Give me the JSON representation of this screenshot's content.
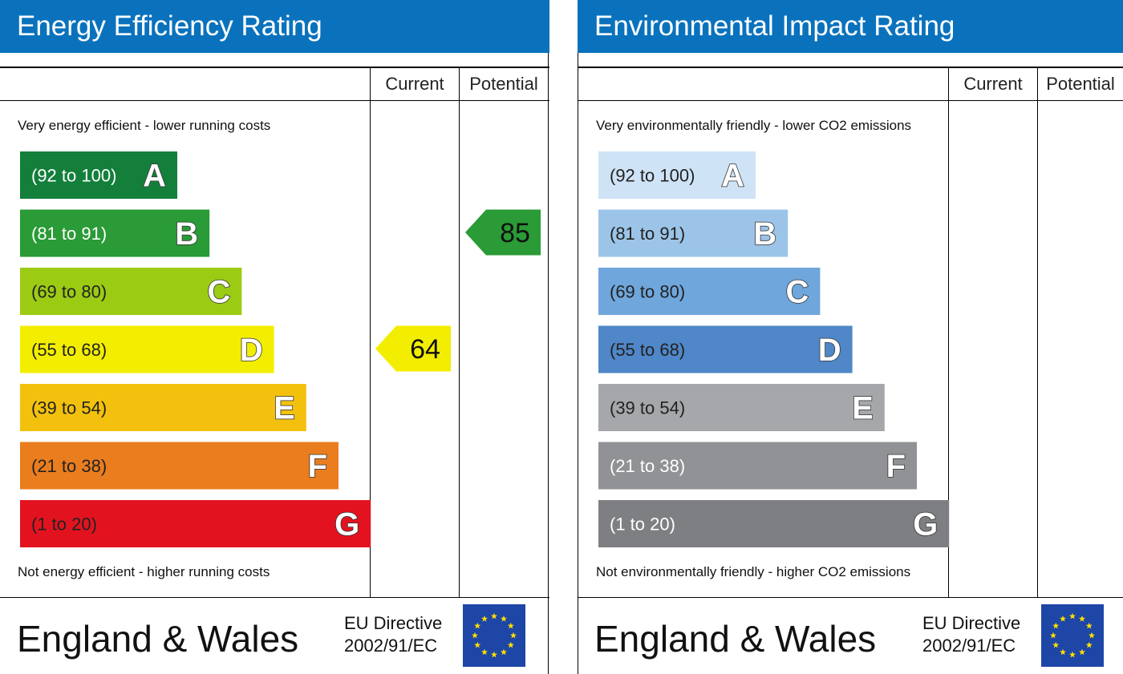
{
  "chart_data": [
    {
      "type": "bar",
      "title": "Energy Efficiency Rating",
      "columns": [
        "Current",
        "Potential"
      ],
      "top_note": "Very energy efficient - lower running costs",
      "bottom_note": "Not energy efficient - higher running costs",
      "bands": [
        {
          "letter": "A",
          "range": "(92 to 100)",
          "color": "#137f3b",
          "text_color": "#ffffff"
        },
        {
          "letter": "B",
          "range": "(81 to 91)",
          "color": "#2a9b36",
          "text_color": "#ffffff"
        },
        {
          "letter": "C",
          "range": "(69 to 80)",
          "color": "#9ccb14",
          "text_color": "#222222"
        },
        {
          "letter": "D",
          "range": "(55 to 68)",
          "color": "#f3ee00",
          "text_color": "#222222"
        },
        {
          "letter": "E",
          "range": "(39 to 54)",
          "color": "#f3c10d",
          "text_color": "#222222"
        },
        {
          "letter": "F",
          "range": "(21 to 38)",
          "color": "#ea7d1e",
          "text_color": "#222222"
        },
        {
          "letter": "G",
          "range": "(1 to 20)",
          "color": "#e2131f",
          "text_color": "#222222"
        }
      ],
      "current": {
        "value": 64,
        "band": "D",
        "color": "#f3ee00",
        "text_color": "#111111"
      },
      "potential": {
        "value": 85,
        "band": "B",
        "color": "#2a9b36",
        "text_color": "#111111"
      },
      "footer": {
        "region": "England & Wales",
        "directive_line1": "EU Directive",
        "directive_line2": "2002/91/EC"
      }
    },
    {
      "type": "bar",
      "title": "Environmental Impact Rating",
      "columns": [
        "Current",
        "Potential"
      ],
      "top_note": "Very environmentally friendly - lower CO2 emissions",
      "bottom_note": "Not environmentally friendly - higher CO2 emissions",
      "bands": [
        {
          "letter": "A",
          "range": "(92 to 100)",
          "color": "#cfe3f6",
          "text_color": "#222222"
        },
        {
          "letter": "B",
          "range": "(81 to 91)",
          "color": "#9cc4e8",
          "text_color": "#222222"
        },
        {
          "letter": "C",
          "range": "(69 to 80)",
          "color": "#6fa6dc",
          "text_color": "#222222"
        },
        {
          "letter": "D",
          "range": "(55 to 68)",
          "color": "#4f87c8",
          "text_color": "#222222"
        },
        {
          "letter": "E",
          "range": "(39 to 54)",
          "color": "#a6a7aa",
          "text_color": "#222222"
        },
        {
          "letter": "F",
          "range": "(21 to 38)",
          "color": "#919295",
          "text_color": "#ffffff"
        },
        {
          "letter": "G",
          "range": "(1 to 20)",
          "color": "#7e7f82",
          "text_color": "#ffffff"
        }
      ],
      "current": null,
      "potential": null,
      "footer": {
        "region": "England & Wales",
        "directive_line1": "EU Directive",
        "directive_line2": "2002/91/EC"
      }
    }
  ],
  "eu_flag_color": "#1d46a6",
  "eu_star_color": "#ffdd00"
}
